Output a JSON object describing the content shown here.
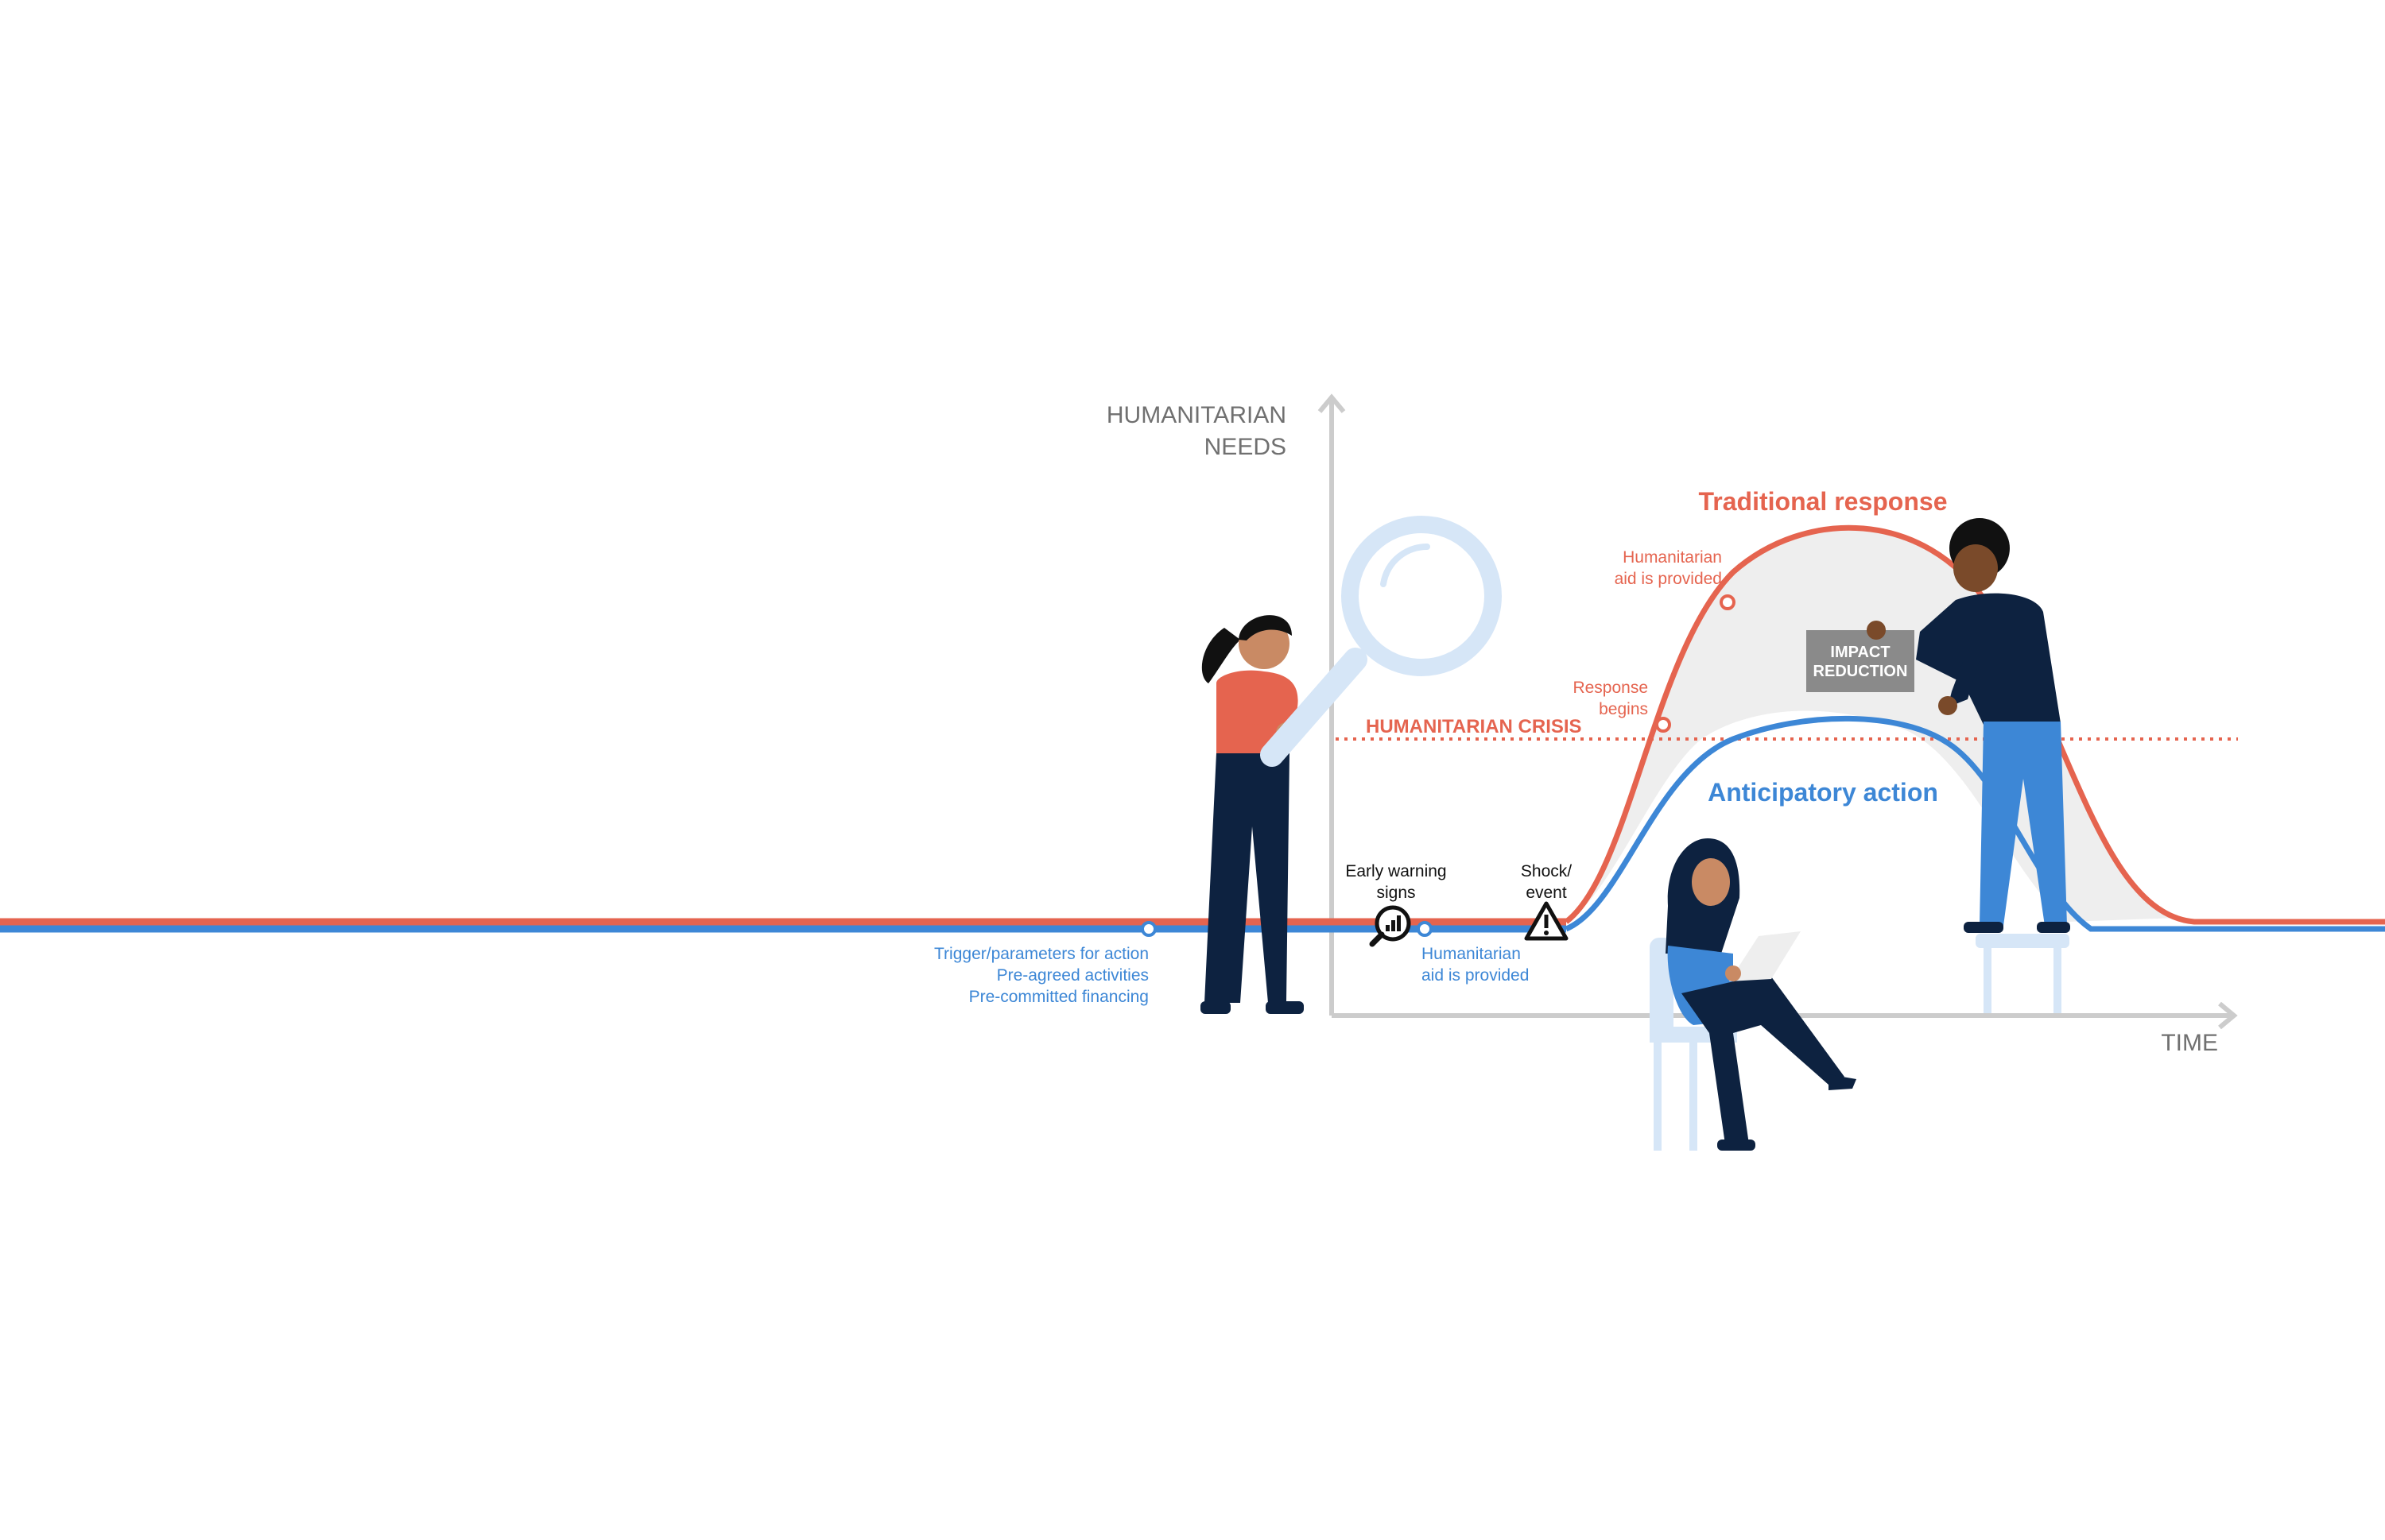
{
  "axes": {
    "y_label_line1": "HUMANITARIAN",
    "y_label_line2": "NEEDS",
    "x_label": "TIME"
  },
  "curves": {
    "traditional": {
      "label": "Traditional response",
      "color": "#e5644f"
    },
    "anticipatory": {
      "label": "Anticipatory action",
      "color": "#3d87d6"
    }
  },
  "crisis_threshold": {
    "label": "HUMANITARIAN CRISIS"
  },
  "annotations": {
    "trigger": [
      "Trigger/parameters for action",
      "Pre-agreed activities",
      "Pre-committed financing"
    ],
    "early_warning": [
      "Early warning",
      "signs"
    ],
    "anticipatory_aid": [
      "Humanitarian",
      "aid is provided"
    ],
    "shock": [
      "Shock/",
      "event"
    ],
    "response_begins": [
      "Response",
      "begins"
    ],
    "traditional_aid": [
      "Humanitarian",
      "aid is provided"
    ]
  },
  "impact_box": {
    "line1": "IMPACT",
    "line2": "REDUCTION",
    "color": "#8a8a8a"
  },
  "icons": {
    "magnifier": "magnifier-icon",
    "early_warning": "search-chart-icon",
    "shock": "warning-triangle-icon"
  }
}
